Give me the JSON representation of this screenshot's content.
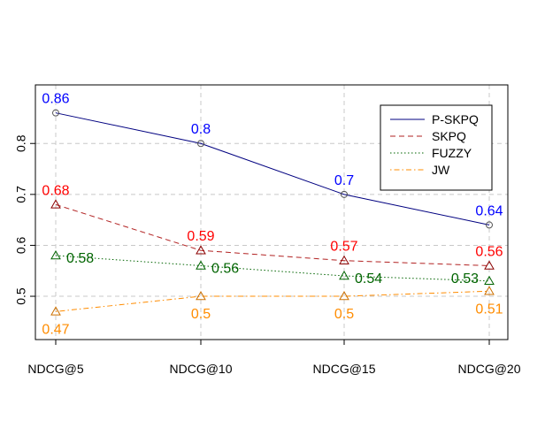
{
  "chart_data": {
    "type": "line",
    "categories": [
      "NDCG@5",
      "NDCG@10",
      "NDCG@15",
      "NDCG@20"
    ],
    "series": [
      {
        "name": "P-SKPQ",
        "values": [
          0.86,
          0.8,
          0.7,
          0.64
        ],
        "labels": [
          "0.86",
          "0.8",
          "0.7",
          "0.64"
        ],
        "color": "#0000FF",
        "line_color": "#000080",
        "dash": "solid",
        "marker": "circle"
      },
      {
        "name": "SKPQ",
        "values": [
          0.68,
          0.59,
          0.57,
          0.56
        ],
        "labels": [
          "0.68",
          "0.59",
          "0.57",
          "0.56"
        ],
        "color": "#FF0000",
        "line_color": "#B22222",
        "dash": "dashed",
        "marker": "triangle"
      },
      {
        "name": "FUZZY",
        "values": [
          0.58,
          0.56,
          0.54,
          0.53
        ],
        "labels": [
          "0.58",
          "0.56",
          "0.54",
          "0.53"
        ],
        "color": "#006400",
        "line_color": "#006400",
        "dash": "dotted",
        "marker": "triangle"
      },
      {
        "name": "JW",
        "values": [
          0.47,
          0.5,
          0.5,
          0.51
        ],
        "labels": [
          "0.47",
          "0.5",
          "0.5",
          "0.51"
        ],
        "color": "#FF8C00",
        "line_color": "#FF8C00",
        "dash": "dotdash",
        "marker": "triangle"
      }
    ],
    "y_ticks": [
      "0.5",
      "0.6",
      "0.7",
      "0.8"
    ],
    "ylim": [
      0.415,
      0.915
    ],
    "grid": true,
    "legend_position": "top-right",
    "title": "",
    "xlabel": "",
    "ylabel": ""
  }
}
